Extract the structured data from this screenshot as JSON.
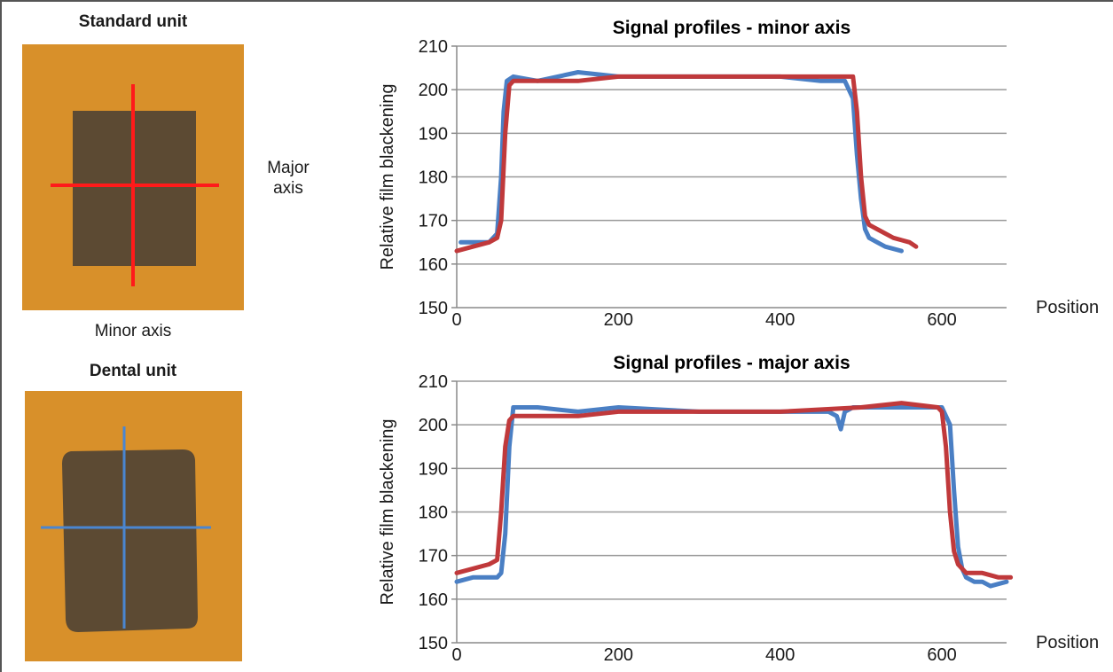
{
  "films": [
    {
      "title": "Standard unit",
      "line_color": "#ff1a1a",
      "film_color": "#d8902a",
      "window_color": "#5c4a33"
    },
    {
      "title": "Dental unit",
      "line_color": "#4a86d1",
      "film_color": "#d8902a",
      "window_color": "#5c4a33"
    }
  ],
  "labels": {
    "major_axis": "Major\naxis",
    "minor_axis": "Minor axis"
  },
  "colors": {
    "blue_series": "#4a7fc4",
    "red_series": "#c0393b",
    "grid": "#9a9a9a",
    "axis": "#8a8a8a"
  },
  "chart_data": [
    {
      "type": "line",
      "title": "Signal profiles - minor axis",
      "xlabel": "Position",
      "ylabel": "Relative film blackening",
      "xlim": [
        0,
        680
      ],
      "ylim": [
        150,
        210
      ],
      "xticks": [
        0,
        200,
        400,
        600
      ],
      "yticks": [
        150,
        160,
        170,
        180,
        190,
        200,
        210
      ],
      "grid": true,
      "legend": "none",
      "series": [
        {
          "color": "#4a7fc4",
          "x": [
            5,
            20,
            40,
            50,
            55,
            58,
            62,
            70,
            100,
            150,
            200,
            300,
            400,
            450,
            480,
            490,
            495,
            500,
            505,
            510,
            520,
            530,
            550
          ],
          "y": [
            165,
            165,
            165,
            167,
            180,
            195,
            202,
            203,
            202,
            204,
            203,
            203,
            203,
            202,
            202,
            198,
            185,
            175,
            168,
            166,
            165,
            164,
            163
          ]
        },
        {
          "color": "#c0393b",
          "x": [
            0,
            20,
            40,
            50,
            55,
            60,
            65,
            70,
            100,
            150,
            200,
            300,
            400,
            450,
            480,
            490,
            495,
            500,
            505,
            510,
            520,
            540,
            560,
            568
          ],
          "y": [
            163,
            164,
            165,
            166,
            170,
            190,
            201,
            202,
            202,
            202,
            203,
            203,
            203,
            203,
            203,
            203,
            195,
            180,
            171,
            169,
            168,
            166,
            165,
            164
          ]
        }
      ]
    },
    {
      "type": "line",
      "title": "Signal profiles - major axis",
      "xlabel": "Position",
      "ylabel": "Relative film blackening",
      "xlim": [
        0,
        680
      ],
      "ylim": [
        150,
        210
      ],
      "xticks": [
        0,
        200,
        400,
        600
      ],
      "yticks": [
        150,
        160,
        170,
        180,
        190,
        200,
        210
      ],
      "grid": true,
      "legend": "none",
      "series": [
        {
          "color": "#4a7fc4",
          "x": [
            0,
            20,
            40,
            50,
            55,
            60,
            65,
            70,
            100,
            150,
            200,
            300,
            400,
            460,
            470,
            475,
            480,
            490,
            550,
            600,
            610,
            615,
            620,
            625,
            630,
            640,
            650,
            660,
            680
          ],
          "y": [
            164,
            165,
            165,
            165,
            166,
            175,
            195,
            204,
            204,
            203,
            204,
            203,
            203,
            203,
            202,
            199,
            203,
            204,
            204,
            204,
            200,
            185,
            172,
            167,
            165,
            164,
            164,
            163,
            164
          ]
        },
        {
          "color": "#c0393b",
          "x": [
            0,
            20,
            40,
            50,
            55,
            60,
            65,
            70,
            100,
            150,
            200,
            300,
            400,
            500,
            550,
            595,
            600,
            605,
            610,
            615,
            620,
            630,
            650,
            670,
            685
          ],
          "y": [
            166,
            167,
            168,
            169,
            180,
            195,
            201,
            202,
            202,
            202,
            203,
            203,
            203,
            204,
            205,
            204,
            203,
            195,
            180,
            171,
            168,
            166,
            166,
            165,
            165
          ]
        }
      ]
    }
  ]
}
